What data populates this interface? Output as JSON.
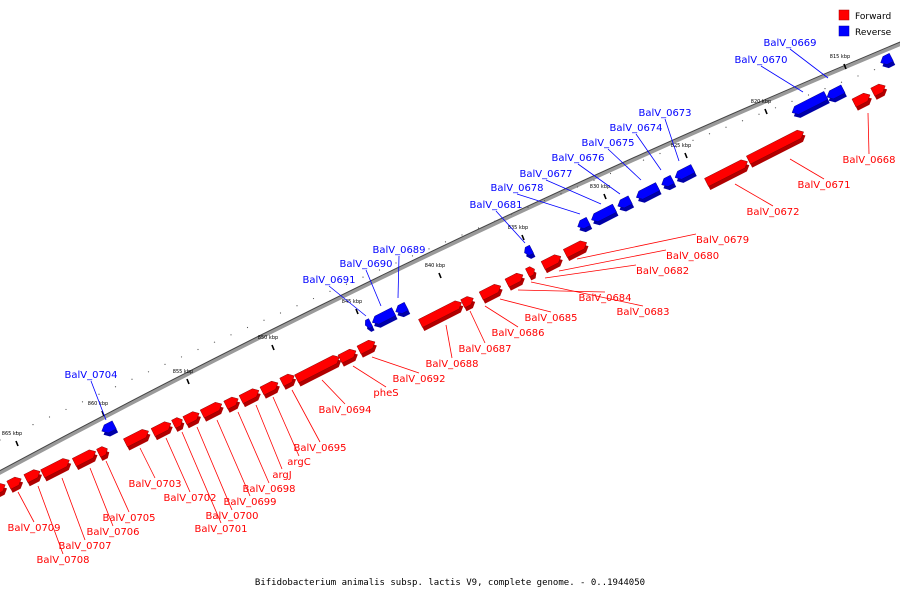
{
  "legend": {
    "forward_label": "Forward",
    "reverse_label": "Reverse",
    "forward_color": "#ff0000",
    "reverse_color": "#0000ff"
  },
  "footer": {
    "caption": "Bifidobacterium animalis subsp. lactis V9, complete genome. - 0..1944050"
  },
  "scale_labels": [
    "815 kbp",
    "820 kbp",
    "825 kbp",
    "830 kbp",
    "835 kbp",
    "840 kbp",
    "845 kbp",
    "850 kbp",
    "855 kbp",
    "860 kbp",
    "865 kbp"
  ],
  "genes": {
    "reverse": [
      "BalV_0669",
      "BalV_0670",
      "BalV_0673",
      "BalV_0674",
      "BalV_0675",
      "BalV_0676",
      "BalV_0677",
      "BalV_0678",
      "BalV_0681",
      "BalV_0689",
      "BalV_0690",
      "BalV_0691",
      "BalV_0704"
    ],
    "forward": [
      "BalV_0668",
      "BalV_0671",
      "BalV_0672",
      "BalV_0679",
      "BalV_0680",
      "BalV_0682",
      "BalV_0684",
      "BalV_0683",
      "BalV_0685",
      "BalV_0686",
      "BalV_0687",
      "BalV_0688",
      "BalV_0692",
      "pheS",
      "BalV_0694",
      "BalV_0695",
      "argC",
      "argJ",
      "BalV_0698",
      "BalV_0699",
      "BalV_0700",
      "BalV_0701",
      "BalV_0702",
      "BalV_0703",
      "BalV_0705",
      "BalV_0706",
      "BalV_0707",
      "BalV_0708",
      "BalV_0709"
    ]
  }
}
